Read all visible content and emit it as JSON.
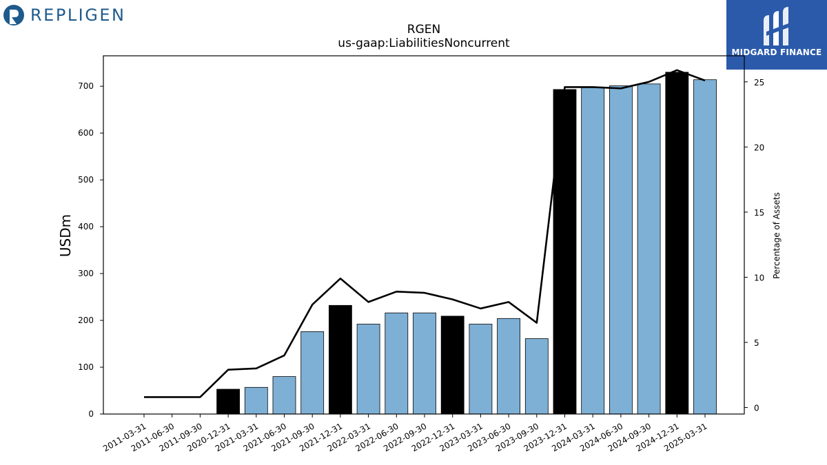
{
  "logos": {
    "left_brand": "REPLIGEN",
    "right_brand": "MIDGARD FINANCE"
  },
  "chart_data": {
    "type": "bar",
    "title": "RGEN",
    "subtitle": "us-gaap:LiabilitiesNoncurrent",
    "ylabel": "USDm",
    "y2label": "Percentage of Assets",
    "ylim": [
      0,
      765
    ],
    "y2lim": [
      -0.5,
      27
    ],
    "yticks": [
      0,
      100,
      200,
      300,
      400,
      500,
      600,
      700
    ],
    "y2ticks": [
      0,
      5,
      10,
      15,
      20,
      25
    ],
    "categories": [
      "2011-03-31",
      "2011-06-30",
      "2011-09-30",
      "2020-12-31",
      "2021-03-31",
      "2021-06-30",
      "2021-09-30",
      "2021-12-31",
      "2022-03-31",
      "2022-06-30",
      "2022-09-30",
      "2022-12-31",
      "2023-03-31",
      "2023-06-30",
      "2023-09-30",
      "2023-12-31",
      "2024-03-31",
      "2024-06-30",
      "2024-09-30",
      "2024-12-31",
      "2025-03-31"
    ],
    "series": [
      {
        "axis": "left",
        "kind": "bar",
        "values": [
          null,
          null,
          null,
          53,
          57,
          80,
          176,
          232,
          192,
          216,
          216,
          209,
          192,
          204,
          161,
          693,
          697,
          701,
          705,
          730,
          714
        ]
      },
      {
        "axis": "right",
        "kind": "line",
        "values": [
          0.8,
          0.8,
          0.8,
          2.9,
          3.0,
          4.0,
          7.9,
          9.9,
          8.1,
          8.9,
          8.8,
          8.3,
          7.6,
          8.1,
          6.5,
          24.6,
          24.6,
          24.5,
          25.0,
          25.9,
          25.1
        ]
      }
    ],
    "bar_colors": {
      "year_end": "#000000",
      "quarter": "#7eb0d5"
    },
    "line_color": "#000000",
    "grid": false
  }
}
